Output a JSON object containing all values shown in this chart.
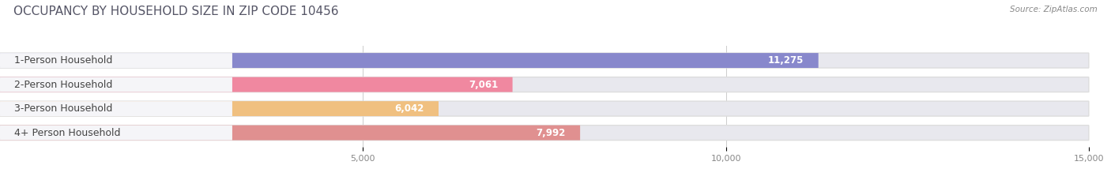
{
  "title": "OCCUPANCY BY HOUSEHOLD SIZE IN ZIP CODE 10456",
  "source": "Source: ZipAtlas.com",
  "categories": [
    "1-Person Household",
    "2-Person Household",
    "3-Person Household",
    "4+ Person Household"
  ],
  "values": [
    11275,
    7061,
    6042,
    7992
  ],
  "bar_colors": [
    "#8888cc",
    "#f088a0",
    "#f0c080",
    "#e09090"
  ],
  "bar_bg_color": "#e8e8ee",
  "label_bg_color": "#f5f5f8",
  "background_color": "#ffffff",
  "xlim": [
    0,
    15000
  ],
  "xticks": [
    5000,
    10000,
    15000
  ],
  "xtick_labels": [
    "5,000",
    "10,000",
    "15,000"
  ],
  "title_fontsize": 11,
  "label_fontsize": 9,
  "value_fontsize": 8.5,
  "bar_height": 0.62,
  "figsize": [
    14.06,
    2.33
  ],
  "dpi": 100
}
